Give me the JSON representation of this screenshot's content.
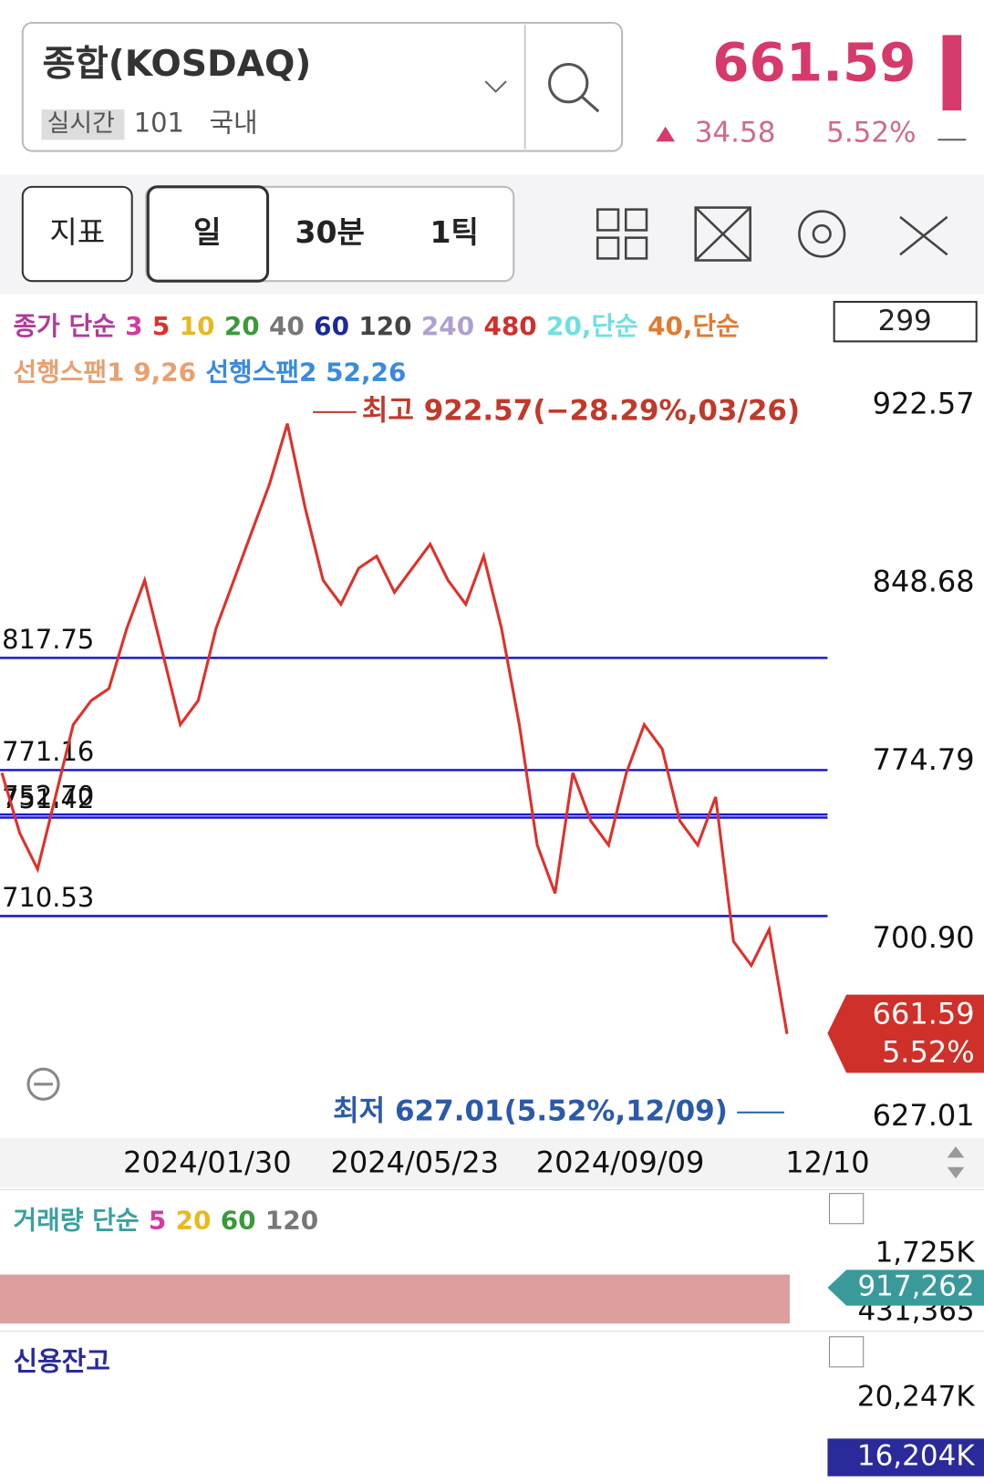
{
  "header": {
    "title": "종합(KOSDAQ)",
    "tag": "실시간",
    "code": "101",
    "market": "국내",
    "price": "661.59",
    "change": "34.58",
    "change_pct": "5.52%"
  },
  "toolbar": {
    "buttons": [
      "지표",
      "일",
      "30분",
      "1틱"
    ]
  },
  "chart": {
    "legend_ma": [
      {
        "text": "종가 단순",
        "color": "#b03a9a"
      },
      {
        "text": "3",
        "color": "#d63aa0"
      },
      {
        "text": "5",
        "color": "#e0302a"
      },
      {
        "text": "10",
        "color": "#e8b820"
      },
      {
        "text": "20",
        "color": "#3a9a3a"
      },
      {
        "text": "40",
        "color": "#777777"
      },
      {
        "text": "60",
        "color": "#1a2a9a"
      },
      {
        "text": "120",
        "color": "#444444"
      },
      {
        "text": "240",
        "color": "#b0a0d0"
      },
      {
        "text": "480",
        "color": "#d0302a"
      },
      {
        "text": "20,단순",
        "color": "#6ee0e0"
      },
      {
        "text": "40,단순",
        "color": "#e07a30"
      }
    ],
    "legend_span": [
      {
        "text": "선행스팬1 9,26",
        "color": "#e8a070"
      },
      {
        "text": "선행스팬2 52,26",
        "color": "#3a8ae0"
      }
    ],
    "count": "299",
    "high_label": "최고 922.57(−28.29%,03/26)",
    "low_label": "최저 627.01(5.52%,12/09)",
    "ylim": [
      627.01,
      922.57
    ],
    "yticks": [
      922.57,
      848.68,
      774.79,
      {
        "value": 700.9,
        "label": "700.90"
      },
      627.01
    ],
    "levels": [
      817.75,
      771.16,
      {
        "value": 752.7,
        "label": "752.70"
      },
      751.42,
      710.53
    ],
    "current": "661.59",
    "current_pct": "5.52%",
    "x_labels": [
      "2024/01/30",
      "2024/05/23",
      "2024/09/09",
      "12/10"
    ],
    "close": [
      770,
      745,
      730,
      760,
      790,
      800,
      805,
      830,
      850,
      820,
      790,
      800,
      830,
      850,
      870,
      890,
      915,
      880,
      850,
      840,
      855,
      860,
      845,
      855,
      865,
      850,
      840,
      860,
      830,
      790,
      740,
      720,
      770,
      750,
      740,
      770,
      790,
      780,
      750,
      740,
      760,
      700,
      690,
      705,
      661.59
    ]
  },
  "volume": {
    "legend": [
      {
        "text": "거래량 단순",
        "color": "#3aa0a0"
      },
      {
        "text": "5",
        "color": "#d63aa0"
      },
      {
        "text": "20",
        "color": "#e8b820"
      },
      {
        "text": "60",
        "color": "#3a9a3a"
      },
      {
        "text": "120",
        "color": "#777777"
      }
    ],
    "ticks": [
      "1,725K",
      "431,365"
    ],
    "current": "917,262"
  },
  "credit": {
    "title": "신용잔고",
    "ticks": [
      "20,247K"
    ],
    "current": "16,204K"
  }
}
